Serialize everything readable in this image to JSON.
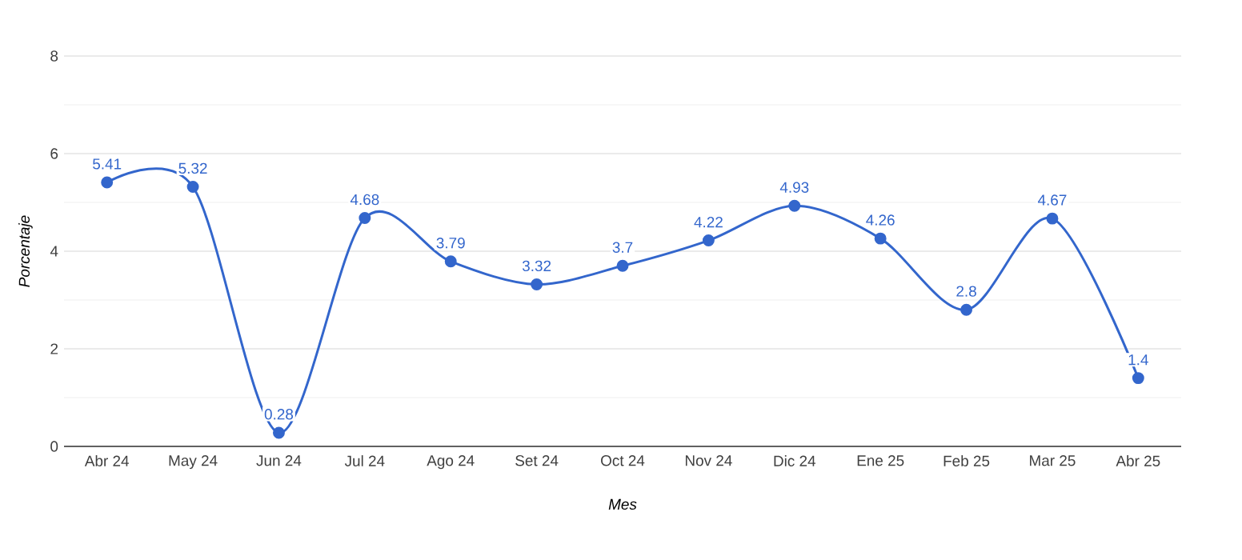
{
  "chart_data": {
    "type": "line",
    "xlabel": "Mes",
    "ylabel": "Porcentaje",
    "categories": [
      "Abr 24",
      "May 24",
      "Jun 24",
      "Jul 24",
      "Ago 24",
      "Set 24",
      "Oct 24",
      "Nov 24",
      "Dic 24",
      "Ene 25",
      "Feb 25",
      "Mar 25",
      "Abr 25"
    ],
    "values": [
      5.41,
      5.32,
      0.28,
      4.68,
      3.79,
      3.32,
      3.7,
      4.22,
      4.93,
      4.26,
      2.8,
      4.67,
      1.4
    ],
    "color": "#3366cc",
    "ylim": [
      0,
      8
    ],
    "yticks": [
      0,
      2,
      4,
      6,
      8
    ],
    "grid": "y",
    "marker": "circle",
    "line_style": "solid",
    "data_labels": true
  }
}
